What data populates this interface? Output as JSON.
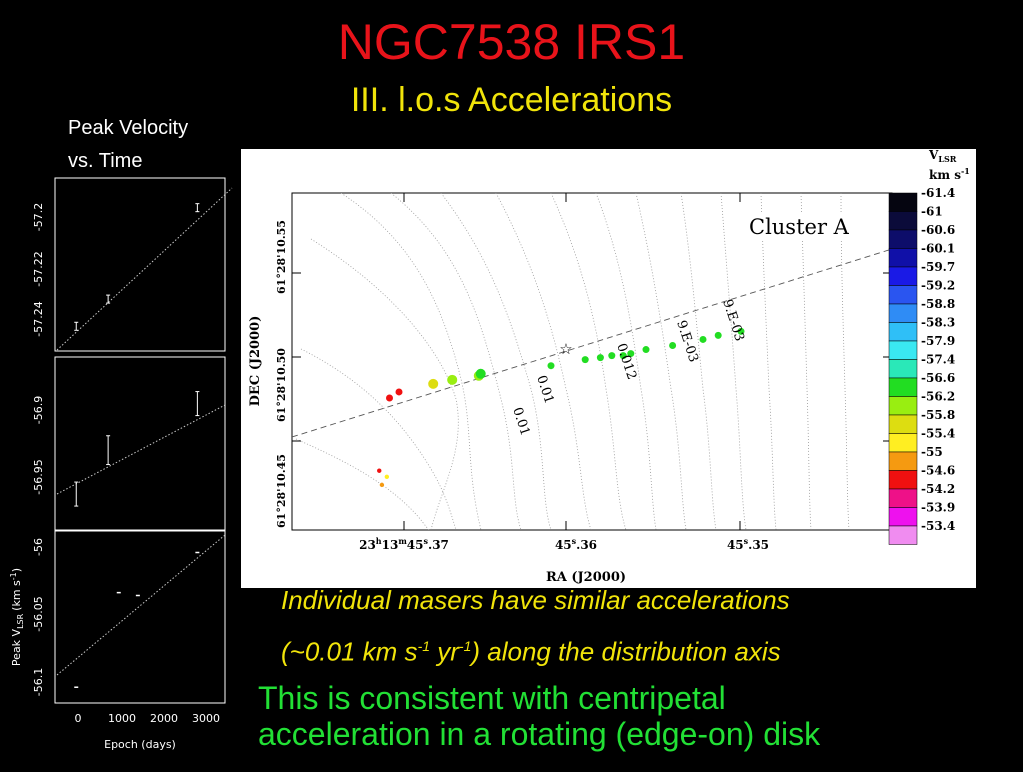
{
  "slide": {
    "title": "NGC7538 IRS1",
    "subtitle": "III. l.o.s Accelerations",
    "side_caption_1": "Peak Velocity",
    "side_caption_2": "vs. Time",
    "caption_line1": "Individual masers have similar accelerations",
    "caption_line2_a": "(~0.01 km s",
    "caption_line2_sup1": "-1",
    "caption_line2_b": " yr",
    "caption_line2_sup2": "-1",
    "caption_line2_c": ") along the distribution axis",
    "conclusion_line1": "This is consistent with centripetal",
    "conclusion_line2": "acceleration in a rotating (edge-on) disk"
  },
  "left_plots": {
    "xlabel": "Epoch (days)",
    "ylabel": "Peak V",
    "ylabel_sub": "LSR",
    "ylabel_unit": "(km s",
    "ylabel_unit_sup": "-1",
    "ylabel_close": ")",
    "xticks": [
      "0",
      "1000",
      "2000",
      "3000"
    ],
    "panels": [
      {
        "yticks": [
          "-57.2",
          "-57.22",
          "-57.24"
        ]
      },
      {
        "yticks": [
          "-56.9",
          "-56.95"
        ]
      },
      {
        "yticks": [
          "-56",
          "-56.05",
          "-56.1"
        ]
      }
    ]
  },
  "map": {
    "cluster_label": "Cluster A",
    "xlabel": "RA (J2000)",
    "ylabel": "DEC (J2000)",
    "xticks": [
      "23h13m45.37",
      "45.36",
      "45.35"
    ],
    "xtick_parts": [
      {
        "a": "23",
        "b": "h",
        "c": "13",
        "d": "m",
        "e": "45",
        "f": "s",
        "g": ".37"
      },
      {
        "a": "45",
        "f": "s",
        "g": ".36"
      },
      {
        "a": "45",
        "f": "s",
        "g": ".35"
      }
    ],
    "yticks": [
      "61°28'10.55",
      "61°28'10.50",
      "61°28'10.45"
    ],
    "contour_labels": [
      "0.01",
      "0.01",
      "0.012",
      "9.E-03",
      "9.E-03"
    ],
    "colorbar": {
      "title": "V",
      "title_sub": "LSR",
      "unit": "km s",
      "unit_sup": "-1",
      "values": [
        "-61.4",
        "-61",
        "-60.6",
        "-60.1",
        "-59.7",
        "-59.2",
        "-58.8",
        "-58.3",
        "-57.9",
        "-57.4",
        "-56.6",
        "-56.2",
        "-55.8",
        "-55.4",
        "-55",
        "-54.6",
        "-54.2",
        "-53.9",
        "-53.4"
      ],
      "colors": [
        "#050510",
        "#0b0b3a",
        "#0d0d6a",
        "#1010a8",
        "#1a1ae6",
        "#2a55f0",
        "#2f8cf5",
        "#2fbff7",
        "#3ae8f2",
        "#2ae8b8",
        "#22dd22",
        "#99ee11",
        "#dddd11",
        "#ffee22",
        "#f59a11",
        "#f01010",
        "#ee1188",
        "#ee11ee",
        "#f08cf0"
      ]
    }
  },
  "chart_data": [
    {
      "type": "scatter",
      "panel": 1,
      "xlabel": "Epoch (days)",
      "x": [
        0,
        750,
        2850
      ],
      "y": [
        -57.245,
        -57.234,
        -57.197
      ],
      "ylim": [
        -57.255,
        -57.185
      ],
      "xlim": [
        -500,
        3500
      ]
    },
    {
      "type": "scatter",
      "panel": 2,
      "xlabel": "Epoch (days)",
      "x": [
        0,
        750,
        2850
      ],
      "y": [
        -56.963,
        -56.93,
        -56.895
      ],
      "ylim": [
        -56.99,
        -56.86
      ],
      "xlim": [
        -500,
        3500
      ]
    },
    {
      "type": "scatter",
      "panel": 3,
      "xlabel": "Epoch (days)",
      "ylabel": "Peak VLSR (km s-1)",
      "x": [
        0,
        1000,
        1450,
        2850
      ],
      "y": [
        -56.099,
        -56.033,
        -56.035,
        -56.005
      ],
      "ylim": [
        -56.11,
        -55.99
      ],
      "xlim": [
        -500,
        3500
      ]
    },
    {
      "type": "scatter",
      "title": "Cluster A",
      "xlabel": "RA (J2000)",
      "ylabel": "DEC (J2000)",
      "series": [
        {
          "name": "masers",
          "x": [
            0.055,
            0.068,
            0.048,
            0.075,
            0.1,
            0.19,
            0.24,
            0.31,
            0.315,
            0.5,
            0.59,
            0.63,
            0.66,
            0.69,
            0.71,
            0.75,
            0.82,
            0.9,
            0.94,
            1.0
          ],
          "y": [
            0.06,
            0.1,
            0.13,
            0.49,
            0.52,
            0.56,
            0.58,
            0.6,
            0.61,
            0.65,
            0.68,
            0.69,
            0.7,
            0.7,
            0.71,
            0.73,
            0.75,
            0.78,
            0.8,
            0.82
          ],
          "velocity": [
            -55,
            -55.4,
            -54.6,
            -54.6,
            -54.6,
            -55.8,
            -56.2,
            -56.2,
            -56.6,
            -56.6,
            -56.6,
            -56.6,
            -56.6,
            -56.6,
            -56.6,
            -56.6,
            -56.6,
            -56.6,
            -56.6,
            -56.6
          ]
        }
      ]
    }
  ]
}
